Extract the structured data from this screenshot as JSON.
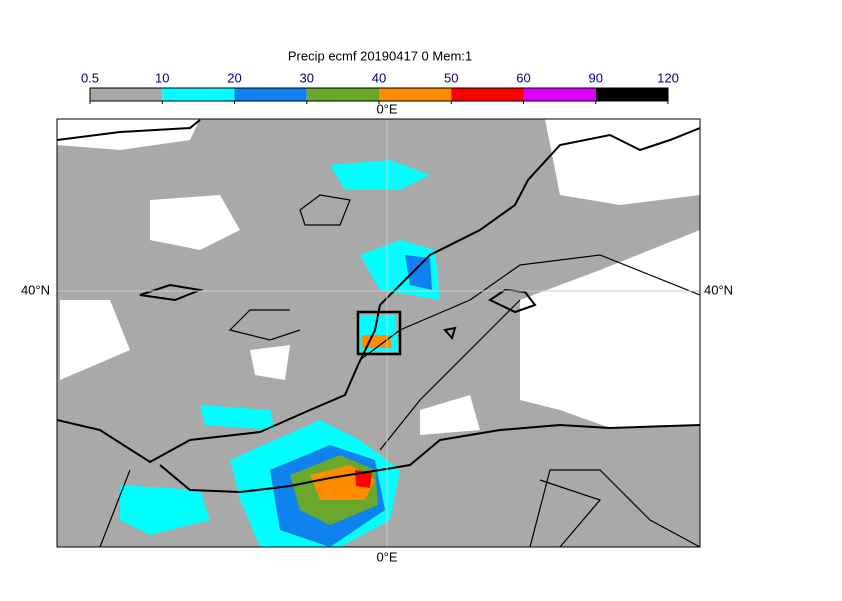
{
  "title": "Precip ecmf 20190417 0 Mem:1",
  "colorbar": {
    "levels": [
      0.5,
      10,
      20,
      30,
      40,
      50,
      60,
      90,
      120
    ],
    "colors": [
      "#a9a9a9",
      "#00ffff",
      "#0f82f0",
      "#69a82b",
      "#ff8c00",
      "#ff0000",
      "#dd00ff",
      "#000000"
    ]
  },
  "map": {
    "lon_label": "0°E",
    "lat_label": "40°N"
  }
}
